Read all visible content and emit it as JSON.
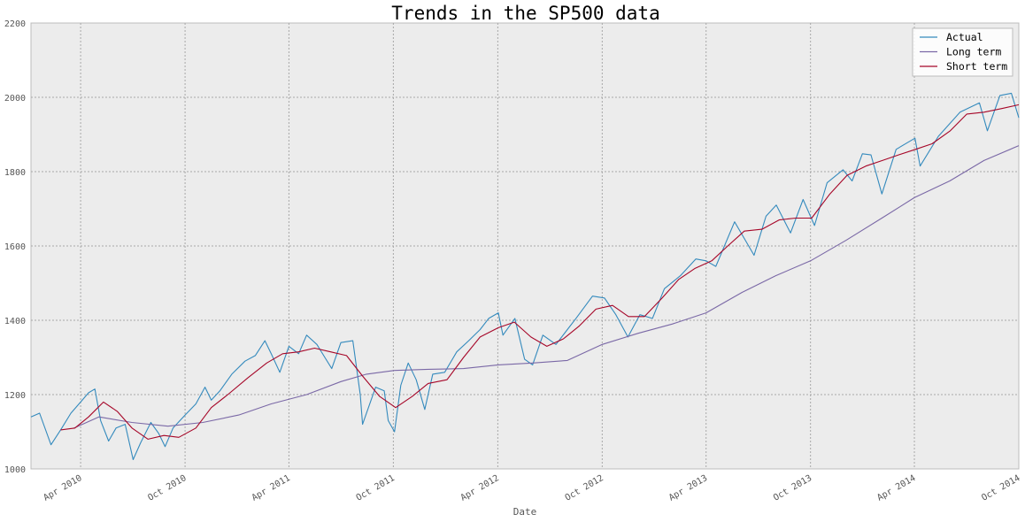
{
  "chart_data": {
    "type": "line",
    "title": "Trends in the SP500 data",
    "xlabel": "Date",
    "ylabel": "",
    "xlim": [
      "2010-01-04",
      "2014-10-01"
    ],
    "ylim": [
      1000,
      2200
    ],
    "grid": true,
    "legend_position": "top-right",
    "x_ticks": [
      {
        "date": "2010-04-01",
        "label": "Apr 2010"
      },
      {
        "date": "2010-10-01",
        "label": "Oct 2010"
      },
      {
        "date": "2011-04-01",
        "label": "Apr 2011"
      },
      {
        "date": "2011-10-01",
        "label": "Oct 2011"
      },
      {
        "date": "2012-04-01",
        "label": "Apr 2012"
      },
      {
        "date": "2012-10-01",
        "label": "Oct 2012"
      },
      {
        "date": "2013-04-01",
        "label": "Apr 2013"
      },
      {
        "date": "2013-10-01",
        "label": "Oct 2013"
      },
      {
        "date": "2014-04-01",
        "label": "Apr 2014"
      },
      {
        "date": "2014-10-01",
        "label": "Oct 2014"
      }
    ],
    "y_ticks": [
      1000,
      1200,
      1400,
      1600,
      1800,
      2000,
      2200
    ],
    "series": [
      {
        "name": "Actual",
        "color": "#348abd",
        "points": [
          [
            "2010-01-04",
            1140
          ],
          [
            "2010-01-19",
            1150
          ],
          [
            "2010-02-08",
            1065
          ],
          [
            "2010-02-25",
            1105
          ],
          [
            "2010-03-15",
            1150
          ],
          [
            "2010-04-01",
            1180
          ],
          [
            "2010-04-15",
            1205
          ],
          [
            "2010-04-26",
            1215
          ],
          [
            "2010-05-06",
            1130
          ],
          [
            "2010-05-20",
            1075
          ],
          [
            "2010-06-02",
            1110
          ],
          [
            "2010-06-18",
            1120
          ],
          [
            "2010-07-02",
            1025
          ],
          [
            "2010-07-15",
            1070
          ],
          [
            "2010-08-02",
            1125
          ],
          [
            "2010-08-16",
            1095
          ],
          [
            "2010-08-27",
            1060
          ],
          [
            "2010-09-10",
            1110
          ],
          [
            "2010-10-01",
            1145
          ],
          [
            "2010-10-20",
            1175
          ],
          [
            "2010-11-05",
            1220
          ],
          [
            "2010-11-16",
            1185
          ],
          [
            "2010-12-01",
            1210
          ],
          [
            "2010-12-22",
            1255
          ],
          [
            "2011-01-14",
            1290
          ],
          [
            "2011-02-01",
            1305
          ],
          [
            "2011-02-18",
            1345
          ],
          [
            "2011-03-01",
            1310
          ],
          [
            "2011-03-16",
            1260
          ],
          [
            "2011-04-01",
            1330
          ],
          [
            "2011-04-18",
            1310
          ],
          [
            "2011-05-02",
            1360
          ],
          [
            "2011-05-20",
            1335
          ],
          [
            "2011-06-03",
            1300
          ],
          [
            "2011-06-15",
            1270
          ],
          [
            "2011-07-01",
            1340
          ],
          [
            "2011-07-22",
            1345
          ],
          [
            "2011-08-04",
            1200
          ],
          [
            "2011-08-08",
            1120
          ],
          [
            "2011-08-31",
            1220
          ],
          [
            "2011-09-15",
            1210
          ],
          [
            "2011-09-22",
            1130
          ],
          [
            "2011-10-03",
            1100
          ],
          [
            "2011-10-14",
            1225
          ],
          [
            "2011-10-27",
            1285
          ],
          [
            "2011-11-10",
            1240
          ],
          [
            "2011-11-25",
            1160
          ],
          [
            "2011-12-09",
            1255
          ],
          [
            "2011-12-30",
            1260
          ],
          [
            "2012-01-20",
            1315
          ],
          [
            "2012-02-10",
            1345
          ],
          [
            "2012-03-01",
            1375
          ],
          [
            "2012-03-16",
            1405
          ],
          [
            "2012-04-02",
            1420
          ],
          [
            "2012-04-10",
            1360
          ],
          [
            "2012-05-01",
            1405
          ],
          [
            "2012-05-18",
            1295
          ],
          [
            "2012-06-01",
            1280
          ],
          [
            "2012-06-19",
            1360
          ],
          [
            "2012-07-12",
            1335
          ],
          [
            "2012-08-01",
            1375
          ],
          [
            "2012-08-16",
            1405
          ],
          [
            "2012-09-14",
            1465
          ],
          [
            "2012-10-05",
            1460
          ],
          [
            "2012-10-25",
            1415
          ],
          [
            "2012-11-15",
            1355
          ],
          [
            "2012-12-06",
            1415
          ],
          [
            "2012-12-28",
            1405
          ],
          [
            "2013-01-18",
            1485
          ],
          [
            "2013-02-15",
            1520
          ],
          [
            "2013-03-14",
            1565
          ],
          [
            "2013-04-01",
            1560
          ],
          [
            "2013-04-18",
            1545
          ],
          [
            "2013-05-21",
            1665
          ],
          [
            "2013-06-24",
            1575
          ],
          [
            "2013-07-15",
            1680
          ],
          [
            "2013-08-02",
            1710
          ],
          [
            "2013-08-27",
            1635
          ],
          [
            "2013-09-18",
            1725
          ],
          [
            "2013-10-08",
            1655
          ],
          [
            "2013-10-30",
            1770
          ],
          [
            "2013-11-27",
            1805
          ],
          [
            "2013-12-13",
            1775
          ],
          [
            "2013-12-31",
            1848
          ],
          [
            "2014-01-15",
            1845
          ],
          [
            "2014-02-03",
            1740
          ],
          [
            "2014-02-28",
            1860
          ],
          [
            "2014-04-02",
            1890
          ],
          [
            "2014-04-11",
            1815
          ],
          [
            "2014-05-13",
            1895
          ],
          [
            "2014-06-20",
            1960
          ],
          [
            "2014-07-24",
            1985
          ],
          [
            "2014-08-07",
            1910
          ],
          [
            "2014-08-29",
            2005
          ],
          [
            "2014-09-18",
            2011
          ],
          [
            "2014-10-01",
            1945
          ]
        ]
      },
      {
        "name": "Long term",
        "color": "#7a68a6",
        "points": [
          [
            "2010-03-19",
            1109
          ],
          [
            "2010-05-03",
            1140
          ],
          [
            "2010-06-30",
            1125
          ],
          [
            "2010-09-01",
            1115
          ],
          [
            "2010-11-01",
            1125
          ],
          [
            "2011-01-03",
            1145
          ],
          [
            "2011-03-01",
            1175
          ],
          [
            "2011-05-02",
            1200
          ],
          [
            "2011-07-01",
            1235
          ],
          [
            "2011-08-15",
            1255
          ],
          [
            "2011-10-03",
            1265
          ],
          [
            "2011-12-01",
            1268
          ],
          [
            "2012-02-01",
            1270
          ],
          [
            "2012-04-02",
            1280
          ],
          [
            "2012-06-01",
            1285
          ],
          [
            "2012-08-01",
            1292
          ],
          [
            "2012-10-01",
            1335
          ],
          [
            "2012-12-03",
            1365
          ],
          [
            "2013-02-01",
            1390
          ],
          [
            "2013-04-01",
            1420
          ],
          [
            "2013-06-03",
            1475
          ],
          [
            "2013-08-01",
            1520
          ],
          [
            "2013-10-01",
            1560
          ],
          [
            "2013-12-02",
            1615
          ],
          [
            "2014-02-03",
            1675
          ],
          [
            "2014-04-01",
            1730
          ],
          [
            "2014-06-02",
            1775
          ],
          [
            "2014-08-01",
            1830
          ],
          [
            "2014-10-01",
            1870
          ]
        ]
      },
      {
        "name": "Short term",
        "color": "#a60628",
        "points": [
          [
            "2010-02-25",
            1105
          ],
          [
            "2010-03-22",
            1110
          ],
          [
            "2010-04-15",
            1140
          ],
          [
            "2010-05-11",
            1180
          ],
          [
            "2010-06-04",
            1155
          ],
          [
            "2010-06-30",
            1110
          ],
          [
            "2010-07-28",
            1080
          ],
          [
            "2010-08-25",
            1090
          ],
          [
            "2010-09-20",
            1085
          ],
          [
            "2010-10-20",
            1110
          ],
          [
            "2010-11-16",
            1165
          ],
          [
            "2010-12-15",
            1200
          ],
          [
            "2011-01-19",
            1245
          ],
          [
            "2011-02-21",
            1285
          ],
          [
            "2011-03-21",
            1310
          ],
          [
            "2011-04-18",
            1315
          ],
          [
            "2011-05-16",
            1325
          ],
          [
            "2011-06-13",
            1315
          ],
          [
            "2011-07-11",
            1305
          ],
          [
            "2011-08-08",
            1250
          ],
          [
            "2011-09-07",
            1195
          ],
          [
            "2011-10-05",
            1165
          ],
          [
            "2011-11-03",
            1195
          ],
          [
            "2011-12-01",
            1230
          ],
          [
            "2012-01-03",
            1240
          ],
          [
            "2012-02-01",
            1300
          ],
          [
            "2012-03-01",
            1355
          ],
          [
            "2012-04-02",
            1380
          ],
          [
            "2012-04-30",
            1395
          ],
          [
            "2012-05-29",
            1355
          ],
          [
            "2012-06-26",
            1330
          ],
          [
            "2012-07-25",
            1350
          ],
          [
            "2012-08-22",
            1385
          ],
          [
            "2012-09-20",
            1430
          ],
          [
            "2012-10-19",
            1440
          ],
          [
            "2012-11-16",
            1410
          ],
          [
            "2012-12-14",
            1410
          ],
          [
            "2013-01-14",
            1460
          ],
          [
            "2013-02-12",
            1510
          ],
          [
            "2013-03-13",
            1540
          ],
          [
            "2013-04-11",
            1560
          ],
          [
            "2013-05-09",
            1600
          ],
          [
            "2013-06-07",
            1640
          ],
          [
            "2013-07-08",
            1645
          ],
          [
            "2013-08-07",
            1670
          ],
          [
            "2013-09-05",
            1675
          ],
          [
            "2013-10-03",
            1675
          ],
          [
            "2013-11-04",
            1740
          ],
          [
            "2013-12-04",
            1790
          ],
          [
            "2014-01-06",
            1815
          ],
          [
            "2014-02-04",
            1830
          ],
          [
            "2014-03-04",
            1845
          ],
          [
            "2014-04-03",
            1860
          ],
          [
            "2014-05-02",
            1875
          ],
          [
            "2014-06-03",
            1910
          ],
          [
            "2014-07-02",
            1955
          ],
          [
            "2014-08-01",
            1960
          ],
          [
            "2014-09-02",
            1970
          ],
          [
            "2014-10-01",
            1980
          ]
        ]
      }
    ]
  }
}
